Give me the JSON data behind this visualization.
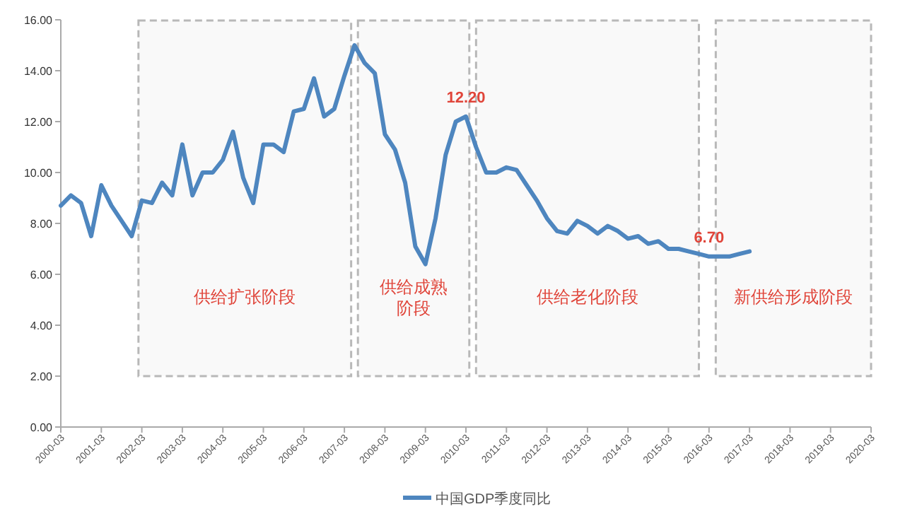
{
  "chart_data": {
    "type": "line",
    "x": [
      "2000-03",
      "2000-06",
      "2000-09",
      "2000-12",
      "2001-03",
      "2001-06",
      "2001-09",
      "2001-12",
      "2002-03",
      "2002-06",
      "2002-09",
      "2002-12",
      "2003-03",
      "2003-06",
      "2003-09",
      "2003-12",
      "2004-03",
      "2004-06",
      "2004-09",
      "2004-12",
      "2005-03",
      "2005-06",
      "2005-09",
      "2005-12",
      "2006-03",
      "2006-06",
      "2006-09",
      "2006-12",
      "2007-03",
      "2007-06",
      "2007-09",
      "2007-12",
      "2008-03",
      "2008-06",
      "2008-09",
      "2008-12",
      "2009-03",
      "2009-06",
      "2009-09",
      "2009-12",
      "2010-03",
      "2010-06",
      "2010-09",
      "2010-12",
      "2011-03",
      "2011-06",
      "2011-09",
      "2011-12",
      "2012-03",
      "2012-06",
      "2012-09",
      "2012-12",
      "2013-03",
      "2013-06",
      "2013-09",
      "2013-12",
      "2014-03",
      "2014-06",
      "2014-09",
      "2014-12",
      "2015-03",
      "2015-06",
      "2015-09",
      "2015-12",
      "2016-03",
      "2016-06",
      "2016-09",
      "2016-12",
      "2017-03"
    ],
    "series": [
      {
        "name": "中国GDP季度同比",
        "color": "#4e86bf",
        "values": [
          8.7,
          9.1,
          8.8,
          7.5,
          9.5,
          8.7,
          8.1,
          7.5,
          8.9,
          8.8,
          9.6,
          9.1,
          11.1,
          9.1,
          10.0,
          10.0,
          10.5,
          11.6,
          9.8,
          8.8,
          11.1,
          11.1,
          10.8,
          12.4,
          12.5,
          13.7,
          12.2,
          12.5,
          13.8,
          15.0,
          14.3,
          13.9,
          11.5,
          10.9,
          9.6,
          7.1,
          6.4,
          8.2,
          10.7,
          12.0,
          12.2,
          11.0,
          10.0,
          10.0,
          10.2,
          10.1,
          9.5,
          8.9,
          8.2,
          7.7,
          7.6,
          8.1,
          7.9,
          7.6,
          7.9,
          7.7,
          7.4,
          7.5,
          7.2,
          7.3,
          7.0,
          7.0,
          6.9,
          6.8,
          6.7,
          6.7,
          6.7,
          6.8,
          6.9
        ]
      }
    ],
    "xlim": [
      "2000-03",
      "2020-03"
    ],
    "xticks": [
      "2000-03",
      "2001-03",
      "2002-03",
      "2003-03",
      "2004-03",
      "2005-03",
      "2006-03",
      "2007-03",
      "2008-03",
      "2009-03",
      "2010-03",
      "2011-03",
      "2012-03",
      "2013-03",
      "2014-03",
      "2015-03",
      "2016-03",
      "2017-03",
      "2018-03",
      "2019-03",
      "2020-03"
    ],
    "ylim": [
      0,
      16
    ],
    "yticks": [
      {
        "value": 0,
        "label": "0.00"
      },
      {
        "value": 2,
        "label": "2.00"
      },
      {
        "value": 4,
        "label": "4.00"
      },
      {
        "value": 6,
        "label": "6.00"
      },
      {
        "value": 8,
        "label": "8.00"
      },
      {
        "value": 10,
        "label": "10.00"
      },
      {
        "value": 12,
        "label": "12.00"
      },
      {
        "value": 14,
        "label": "14.00"
      },
      {
        "value": 16,
        "label": "16.00"
      }
    ],
    "bands": [
      {
        "axis": "x",
        "from": "2002-02",
        "to": "2007-05",
        "label": "供给扩张阶段",
        "color": "#b8b8b8"
      },
      {
        "axis": "x",
        "from": "2007-07",
        "to": "2010-04",
        "label": "供给成熟阶段",
        "color": "#b8b8b8"
      },
      {
        "axis": "x",
        "from": "2010-06",
        "to": "2015-12",
        "label": "供给老化阶段",
        "color": "#b8b8b8"
      },
      {
        "axis": "x",
        "from": "2016-05",
        "to": "2020-03",
        "label": "新供给形成阶段",
        "color": "#b8b8b8"
      }
    ],
    "annotations": [
      {
        "text": "12.20",
        "x": "2010-03",
        "y": 12.2
      },
      {
        "text": "6.70",
        "x": "2016-03",
        "y": 6.7
      }
    ],
    "grid": false,
    "legend": "bottom",
    "line_style": "solid",
    "marker": "none"
  }
}
